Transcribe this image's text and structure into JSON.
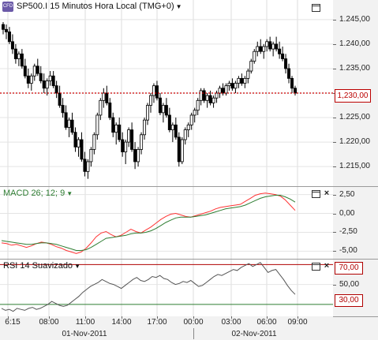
{
  "main": {
    "title": "SP500.I 15 Minutos Hora Local (TMG+0)",
    "logo_text": "CFD",
    "price_ticks": [
      "1.245,00",
      "1.240,00",
      "1.235,00",
      "1.230,00",
      "1.225,00",
      "1.220,00",
      "1.215,00"
    ],
    "current_price": "1,230,00",
    "current_price_label": "1,230,00"
  },
  "macd": {
    "title": "MACD 26; 12; 9",
    "ticks": [
      "2,50",
      "0,00",
      "-2,50",
      "-5,00"
    ]
  },
  "rsi": {
    "title": "RSI 14 Suavizado",
    "ticks": [
      "50,00"
    ],
    "upper_label": "70,00",
    "lower_label": "30,00"
  },
  "time_axis": {
    "labels": [
      "6:15",
      "08:00",
      "11:00",
      "14:00",
      "17:00",
      "00:00",
      "03:00",
      "06:00",
      "09:00"
    ],
    "dates": [
      "01-Nov-2011",
      "02-Nov-2011"
    ]
  },
  "colors": {
    "up": "#ffffff",
    "down": "#000000",
    "price_line": "#cc0000",
    "macd_line": "#ff3333",
    "signal_line": "#2e7d32",
    "rsi_line": "#555555",
    "rsi_upper": "#b00000",
    "rsi_lower": "#2e7d32"
  },
  "chart_data": [
    {
      "type": "candlestick",
      "title": "SP500.I 15 Minutos Hora Local (TMG+0)",
      "ylim": [
        1211,
        1249
      ],
      "y_ticks": [
        1245,
        1240,
        1235,
        1230,
        1225,
        1220,
        1215
      ],
      "reference_line": 1230,
      "x_labels": [
        "6:15",
        "08:00",
        "11:00",
        "14:00",
        "17:00",
        "00:00",
        "03:00",
        "06:00",
        "09:00"
      ],
      "candles": [
        [
          1244,
          1244.5,
          1242,
          1243
        ],
        [
          1243,
          1244,
          1241,
          1242.5
        ],
        [
          1242.5,
          1243.5,
          1240,
          1240.5
        ],
        [
          1240.5,
          1242,
          1238,
          1239
        ],
        [
          1239,
          1240,
          1236,
          1237
        ],
        [
          1237,
          1238.5,
          1235.5,
          1238
        ],
        [
          1238,
          1239,
          1235,
          1235.5
        ],
        [
          1235.5,
          1237,
          1233,
          1233.5
        ],
        [
          1233.5,
          1235,
          1231,
          1232
        ],
        [
          1232,
          1234,
          1230.5,
          1233.5
        ],
        [
          1233.5,
          1236,
          1232.5,
          1235.5
        ],
        [
          1235.5,
          1237,
          1233.5,
          1234
        ],
        [
          1234,
          1235.5,
          1232,
          1232.5
        ],
        [
          1232.5,
          1234,
          1230,
          1231
        ],
        [
          1231,
          1233,
          1229.5,
          1232.5
        ],
        [
          1232.5,
          1234.5,
          1231.5,
          1233.5
        ],
        [
          1233.5,
          1234.5,
          1231,
          1231.5
        ],
        [
          1231.5,
          1232.5,
          1229,
          1230
        ],
        [
          1230,
          1231.5,
          1227,
          1227.5
        ],
        [
          1227.5,
          1229,
          1225,
          1226
        ],
        [
          1226,
          1227.5,
          1222.5,
          1223
        ],
        [
          1223,
          1225,
          1221,
          1224.5
        ],
        [
          1224.5,
          1226,
          1221.5,
          1222
        ],
        [
          1222,
          1223,
          1218,
          1219
        ],
        [
          1219,
          1221,
          1217,
          1220.5
        ],
        [
          1220.5,
          1222,
          1216,
          1216.5
        ],
        [
          1216.5,
          1218,
          1213,
          1214
        ],
        [
          1214,
          1216.5,
          1212.5,
          1216
        ],
        [
          1216,
          1219,
          1215,
          1218.5
        ],
        [
          1218.5,
          1222,
          1217.5,
          1221.5
        ],
        [
          1221.5,
          1226,
          1220.5,
          1225.5
        ],
        [
          1225.5,
          1229,
          1224.5,
          1228.5
        ],
        [
          1228.5,
          1231,
          1227,
          1230
        ],
        [
          1230,
          1231.5,
          1227.5,
          1228
        ],
        [
          1228,
          1229,
          1224.5,
          1225
        ],
        [
          1225,
          1226,
          1221,
          1222
        ],
        [
          1222,
          1224,
          1219.5,
          1223.5
        ],
        [
          1223.5,
          1225,
          1220,
          1220.5
        ],
        [
          1220.5,
          1222,
          1217,
          1218
        ],
        [
          1218,
          1220.5,
          1215.5,
          1220
        ],
        [
          1220,
          1223,
          1219,
          1222.5
        ],
        [
          1222.5,
          1224,
          1218,
          1218.5
        ],
        [
          1218.5,
          1220,
          1214.5,
          1216
        ],
        [
          1216,
          1219,
          1215,
          1218.5
        ],
        [
          1218.5,
          1222,
          1217.5,
          1221.5
        ],
        [
          1221.5,
          1225,
          1220.5,
          1224.5
        ],
        [
          1224.5,
          1228,
          1223.5,
          1227.5
        ],
        [
          1227.5,
          1230,
          1226,
          1229.5
        ],
        [
          1229.5,
          1232,
          1228,
          1231.5
        ],
        [
          1231.5,
          1232.5,
          1228.5,
          1229
        ],
        [
          1229,
          1230,
          1225.5,
          1226
        ],
        [
          1226,
          1228,
          1224,
          1227.5
        ],
        [
          1227.5,
          1229,
          1225,
          1225.5
        ],
        [
          1225.5,
          1227,
          1222,
          1222.5
        ],
        [
          1222.5,
          1224,
          1220,
          1223.5
        ],
        [
          1223.5,
          1225,
          1220.5,
          1221
        ],
        [
          1221,
          1222,
          1215,
          1216
        ],
        [
          1216,
          1221,
          1215.5,
          1220.5
        ],
        [
          1220.5,
          1223,
          1219.5,
          1222.5
        ],
        [
          1222.5,
          1224,
          1221,
          1223.5
        ],
        [
          1223.5,
          1226,
          1222.5,
          1225.5
        ],
        [
          1225.5,
          1227,
          1224,
          1226.5
        ],
        [
          1226.5,
          1229,
          1225.5,
          1228.5
        ],
        [
          1228.5,
          1231,
          1227.5,
          1230.5
        ],
        [
          1230.5,
          1231,
          1228,
          1228.5
        ],
        [
          1228.5,
          1230,
          1227,
          1229.5
        ],
        [
          1229.5,
          1230.5,
          1227.5,
          1228
        ],
        [
          1228,
          1229.5,
          1227,
          1229
        ],
        [
          1229,
          1230.5,
          1228,
          1230
        ],
        [
          1230,
          1231.5,
          1229,
          1231
        ],
        [
          1231,
          1232,
          1229.5,
          1230
        ],
        [
          1230,
          1232,
          1229.5,
          1231.5
        ],
        [
          1231.5,
          1232.5,
          1230.5,
          1232
        ],
        [
          1232,
          1233,
          1230.5,
          1231
        ],
        [
          1231,
          1232.5,
          1230,
          1232
        ],
        [
          1232,
          1233.5,
          1231,
          1233
        ],
        [
          1233,
          1234,
          1231.5,
          1232
        ],
        [
          1232,
          1233.5,
          1231,
          1233
        ],
        [
          1233,
          1235,
          1232,
          1234.5
        ],
        [
          1234.5,
          1237,
          1234,
          1236.5
        ],
        [
          1236.5,
          1239,
          1236,
          1238.5
        ],
        [
          1238.5,
          1240.5,
          1237.5,
          1239.5
        ],
        [
          1239.5,
          1241,
          1238,
          1238.5
        ],
        [
          1238.5,
          1240,
          1237,
          1239.5
        ],
        [
          1239.5,
          1241,
          1238.5,
          1240.5
        ],
        [
          1240.5,
          1241.5,
          1238.5,
          1239
        ],
        [
          1239,
          1240.5,
          1237.5,
          1240
        ],
        [
          1240,
          1241.5,
          1238.5,
          1239
        ],
        [
          1239,
          1240.5,
          1237,
          1238
        ],
        [
          1238,
          1239.5,
          1236.5,
          1237
        ],
        [
          1237,
          1238,
          1234,
          1235
        ],
        [
          1235,
          1236,
          1232,
          1233
        ],
        [
          1233,
          1233.5,
          1230,
          1231
        ],
        [
          1231,
          1231.5,
          1229.5,
          1230
        ]
      ]
    },
    {
      "type": "line",
      "title": "MACD 26; 12; 9",
      "ylim": [
        -6,
        3.5
      ],
      "y_ticks": [
        2.5,
        0,
        -2.5,
        -5
      ],
      "series": [
        {
          "values": [
            -3.9,
            -4.0,
            -4.2,
            -4.1,
            -4.3,
            -4.5,
            -4.3,
            -4.0,
            -3.8,
            -3.9,
            -4.1,
            -4.4,
            -4.6,
            -4.9,
            -5.1,
            -5.3,
            -5.1,
            -4.6,
            -3.9,
            -3.1,
            -2.6,
            -2.4,
            -2.8,
            -3.1,
            -2.9,
            -2.5,
            -2.1,
            -2.4,
            -2.6,
            -2.2,
            -1.8,
            -1.3,
            -0.8,
            -0.4,
            -0.1,
            0.0,
            -0.2,
            -0.4,
            -0.5,
            -0.3,
            -0.1,
            0.1,
            0.3,
            0.6,
            0.8,
            0.9,
            1.0,
            1.1,
            1.2,
            1.6,
            2.0,
            2.4,
            2.6,
            2.7,
            2.6,
            2.5,
            2.3,
            1.8,
            1.1,
            0.4
          ]
        },
        {
          "values": [
            -3.6,
            -3.7,
            -3.8,
            -3.9,
            -4.0,
            -4.1,
            -4.1,
            -4.0,
            -3.9,
            -3.9,
            -4.0,
            -4.1,
            -4.3,
            -4.5,
            -4.7,
            -4.9,
            -4.9,
            -4.8,
            -4.5,
            -4.1,
            -3.7,
            -3.3,
            -3.2,
            -3.1,
            -3.0,
            -2.9,
            -2.7,
            -2.6,
            -2.6,
            -2.5,
            -2.3,
            -2.0,
            -1.6,
            -1.2,
            -0.9,
            -0.6,
            -0.5,
            -0.5,
            -0.5,
            -0.4,
            -0.3,
            -0.2,
            0.0,
            0.2,
            0.4,
            0.6,
            0.7,
            0.8,
            0.9,
            1.1,
            1.4,
            1.7,
            2.0,
            2.2,
            2.3,
            2.4,
            2.4,
            2.2,
            1.9,
            1.5
          ]
        }
      ]
    },
    {
      "type": "line",
      "title": "RSI 14 Suavizado",
      "ylim": [
        18,
        75
      ],
      "y_ticks": [
        50
      ],
      "reference_lines": [
        70,
        30
      ],
      "series": [
        {
          "values": [
            26,
            24,
            25,
            23,
            26,
            25,
            24,
            26,
            27,
            25,
            26,
            28,
            30,
            33,
            31,
            29,
            28,
            29,
            32,
            35,
            38,
            42,
            45,
            48,
            50,
            52,
            55,
            53,
            51,
            50,
            48,
            46,
            49,
            52,
            55,
            57,
            54,
            53,
            55,
            58,
            57,
            59,
            56,
            55,
            52,
            50,
            51,
            53,
            52,
            54,
            51,
            48,
            49,
            52,
            55,
            58,
            60,
            59,
            61,
            63,
            65,
            64,
            67,
            69,
            71,
            68,
            70,
            72,
            67,
            62,
            64,
            65,
            60,
            55,
            49,
            44,
            40
          ]
        }
      ]
    }
  ]
}
